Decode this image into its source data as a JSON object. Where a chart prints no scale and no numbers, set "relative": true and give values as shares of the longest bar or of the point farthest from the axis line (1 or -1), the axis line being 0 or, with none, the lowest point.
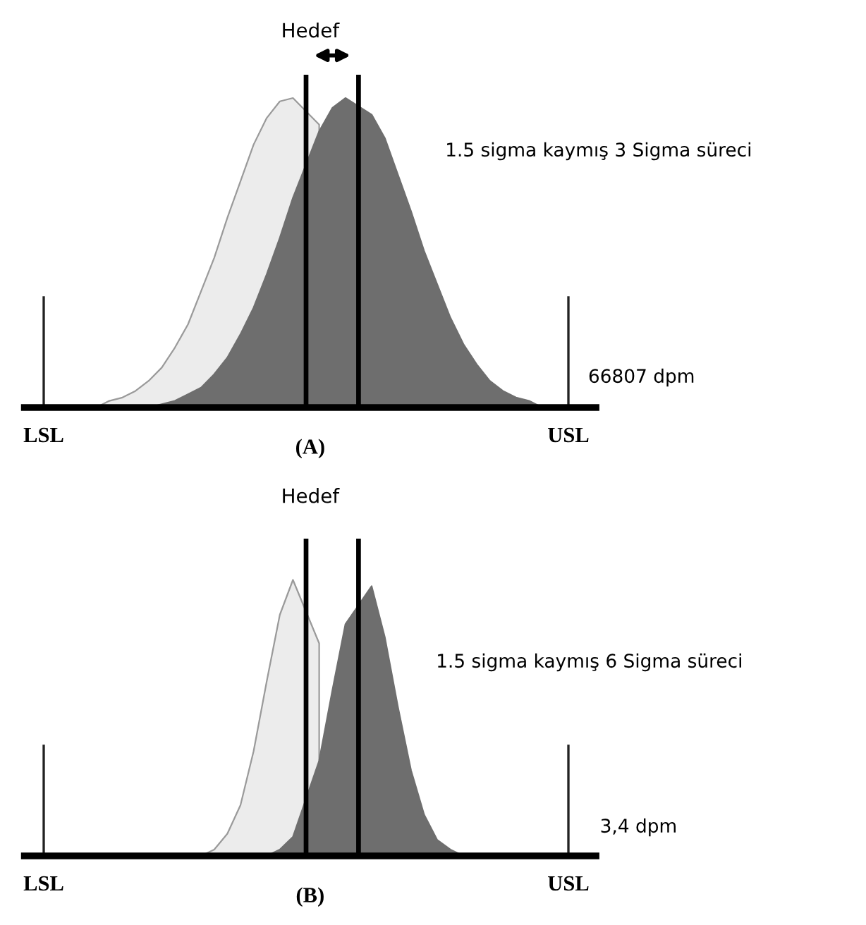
{
  "chart_data": [
    {
      "type": "area",
      "relative": true,
      "title": "Hedef",
      "xlabel": "(A)",
      "categories": [
        "LSL",
        null,
        null,
        null,
        null,
        null,
        null,
        null,
        null,
        null,
        null,
        null,
        null,
        null,
        null,
        null,
        null,
        null,
        null,
        null,
        null,
        null,
        null,
        null,
        null,
        null,
        null,
        null,
        null,
        null,
        null,
        null,
        null,
        null,
        null,
        null,
        null,
        null,
        null,
        null,
        "USL"
      ],
      "ref_lines": [
        {
          "axis": "x",
          "value": "LSL",
          "color": "#222222"
        },
        {
          "axis": "x",
          "value": "USL",
          "color": "#222222"
        }
      ],
      "series": [
        {
          "color": "#ececec",
          "values": [
            null,
            null,
            null,
            null,
            0,
            0.02,
            0.03,
            0.05,
            0.08,
            0.12,
            0.18,
            0.25,
            0.35,
            0.45,
            0.57,
            0.68,
            0.79,
            0.87,
            0.92,
            0.93,
            null,
            0.85,
            null,
            null,
            null,
            null,
            null,
            null,
            null,
            null,
            null,
            null,
            null,
            null,
            null,
            null,
            null,
            null,
            null,
            null,
            null
          ]
        },
        {
          "color": "#6e6e6e",
          "values": [
            null,
            null,
            null,
            null,
            null,
            null,
            null,
            null,
            0,
            0.01,
            0.02,
            0.04,
            0.06,
            0.1,
            0.15,
            0.22,
            0.3,
            0.4,
            0.51,
            0.63,
            null,
            0.83,
            0.9,
            0.93,
            null,
            0.88,
            0.81,
            0.7,
            0.59,
            0.47,
            0.37,
            0.27,
            0.19,
            0.13,
            0.08,
            0.05,
            0.03,
            0.02,
            0,
            null,
            null
          ]
        },
        {
          "type": "bar",
          "color": "#000000",
          "values": [
            null,
            null,
            null,
            null,
            null,
            null,
            null,
            null,
            null,
            null,
            null,
            null,
            null,
            null,
            null,
            null,
            null,
            null,
            null,
            null,
            1,
            null,
            null,
            null,
            1,
            null,
            null,
            null,
            null,
            null,
            null,
            null,
            null,
            null,
            null,
            null,
            null,
            null,
            null,
            null,
            null
          ]
        }
      ],
      "annotations": [
        "1.5 sigma kaymış 3 Sigma süreci",
        "66807 dpm"
      ]
    },
    {
      "type": "area",
      "relative": true,
      "title": "Hedef",
      "xlabel": "(B)",
      "categories": [
        "LSL",
        null,
        null,
        null,
        null,
        null,
        null,
        null,
        null,
        null,
        null,
        null,
        null,
        null,
        null,
        null,
        null,
        null,
        null,
        null,
        null,
        null,
        null,
        null,
        null,
        null,
        null,
        null,
        null,
        null,
        null,
        null,
        null,
        null,
        null,
        null,
        null,
        null,
        null,
        null,
        "USL"
      ],
      "ref_lines": [
        {
          "axis": "x",
          "value": "LSL",
          "color": "#222222"
        },
        {
          "axis": "x",
          "value": "USL",
          "color": "#222222"
        }
      ],
      "series": [
        {
          "color": "#ececec",
          "values": [
            null,
            null,
            null,
            null,
            null,
            null,
            null,
            null,
            null,
            null,
            null,
            null,
            0,
            0.02,
            0.07,
            0.16,
            0.33,
            0.55,
            0.76,
            0.87,
            null,
            0.67,
            null,
            null,
            null,
            null,
            null,
            null,
            null,
            null,
            null,
            null,
            null,
            null,
            null,
            null,
            null,
            null,
            null,
            null,
            null
          ]
        },
        {
          "color": "#6e6e6e",
          "values": [
            null,
            null,
            null,
            null,
            null,
            null,
            null,
            null,
            null,
            null,
            null,
            null,
            null,
            null,
            null,
            null,
            null,
            0,
            0.02,
            0.06,
            null,
            0.3,
            0.52,
            0.73,
            null,
            0.85,
            0.69,
            0.47,
            0.27,
            0.13,
            0.05,
            0.02,
            0,
            null,
            null,
            null,
            null,
            null,
            null,
            null,
            null
          ]
        },
        {
          "type": "bar",
          "color": "#000000",
          "values": [
            null,
            null,
            null,
            null,
            null,
            null,
            null,
            null,
            null,
            null,
            null,
            null,
            null,
            null,
            null,
            null,
            null,
            null,
            null,
            null,
            1,
            null,
            null,
            null,
            1,
            null,
            null,
            null,
            null,
            null,
            null,
            null,
            null,
            null,
            null,
            null,
            null,
            null,
            null,
            null,
            null
          ]
        }
      ],
      "annotations": [
        "1.5 sigma kaymış 6 Sigma süreci",
        "3,4 dpm"
      ]
    }
  ]
}
